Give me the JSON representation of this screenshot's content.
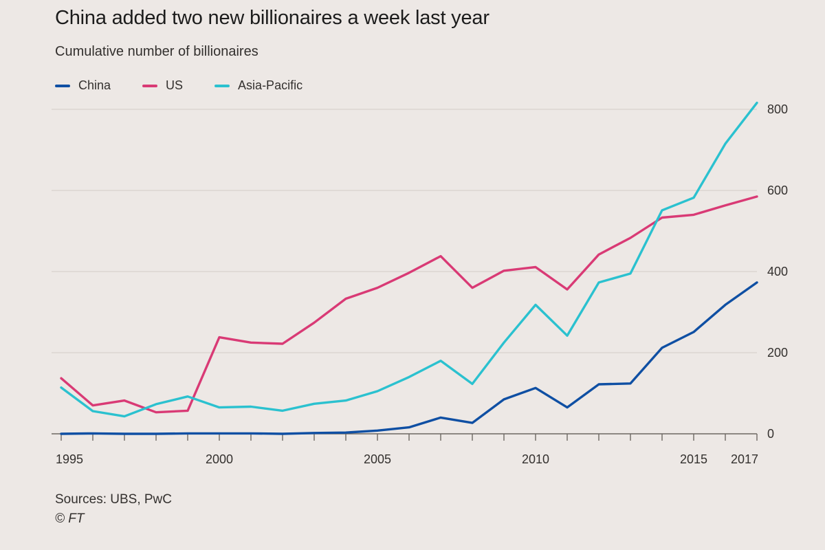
{
  "header": {
    "title": "China added two new billionaires a week last year",
    "subtitle": "Cumulative number of billionaires"
  },
  "footer": {
    "sources": "Sources: UBS, PwC",
    "copyright": "© FT"
  },
  "colors": {
    "background": "#ede8e5",
    "grid": "#d9d2cd",
    "China": "#0f4fa3",
    "US": "#d93a75",
    "Asia-Pacific": "#2bc1cf"
  },
  "chart_data": {
    "type": "line",
    "title": "China added two new billionaires a week last year",
    "subtitle": "Cumulative number of billionaires",
    "xlabel": "",
    "ylabel": "",
    "x": [
      1995,
      1996,
      1997,
      1998,
      1999,
      2000,
      2001,
      2002,
      2003,
      2004,
      2005,
      2006,
      2007,
      2008,
      2009,
      2010,
      2011,
      2012,
      2013,
      2014,
      2015,
      2016,
      2017
    ],
    "xlim": [
      1995,
      2017
    ],
    "ylim": [
      0,
      800
    ],
    "x_ticks": [
      1995,
      2000,
      2005,
      2010,
      2015,
      2017
    ],
    "y_ticks": [
      0,
      200,
      400,
      600,
      800
    ],
    "y_axis_side": "right",
    "grid": true,
    "legend_position": "top-left",
    "series": [
      {
        "name": "China",
        "values": [
          0,
          1,
          0,
          0,
          1,
          1,
          1,
          0,
          2,
          3,
          8,
          16,
          40,
          27,
          85,
          113,
          65,
          122,
          124,
          212,
          251,
          318,
          373
        ]
      },
      {
        "name": "US",
        "values": [
          137,
          70,
          82,
          53,
          57,
          238,
          225,
          222,
          274,
          333,
          360,
          397,
          438,
          360,
          402,
          411,
          356,
          442,
          483,
          533,
          540,
          563,
          585
        ]
      },
      {
        "name": "Asia-Pacific",
        "values": [
          114,
          56,
          43,
          73,
          92,
          65,
          67,
          57,
          74,
          82,
          105,
          140,
          180,
          123,
          225,
          318,
          242,
          373,
          395,
          551,
          582,
          715,
          816
        ]
      }
    ]
  }
}
